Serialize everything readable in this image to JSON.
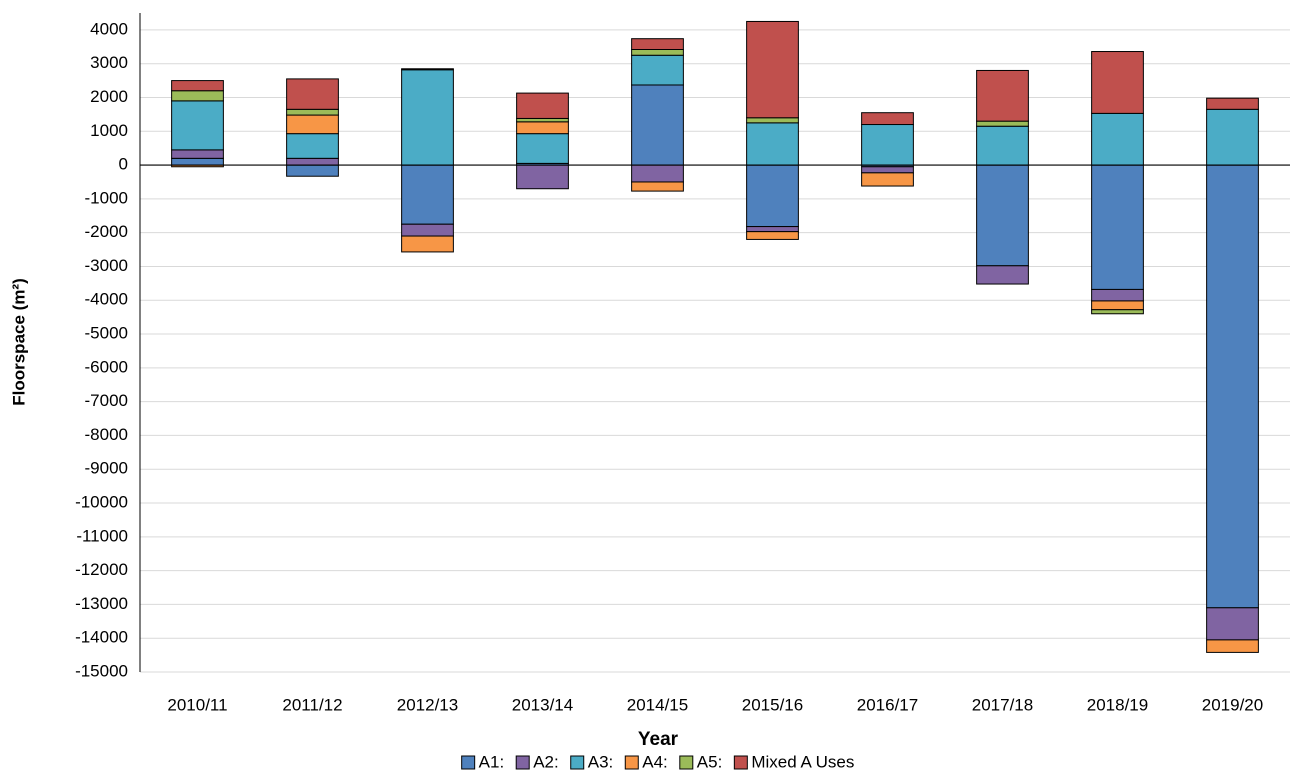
{
  "chart_data": {
    "type": "stacked_bar",
    "x_label": "Year",
    "y_label": "Floorspace (m²)",
    "categories": [
      "2010/11",
      "2011/12",
      "2012/13",
      "2013/14",
      "2014/15",
      "2015/16",
      "2016/17",
      "2017/18",
      "2018/19",
      "2019/20"
    ],
    "series": [
      {
        "name": "A1:",
        "color": "#4f81bd",
        "values": [
          200,
          -330,
          -1750,
          50,
          2370,
          -1820,
          -50,
          -2980,
          -3680,
          -13100
        ]
      },
      {
        "name": "A2:",
        "color": "#8064a2",
        "values": [
          250,
          200,
          -350,
          -700,
          -500,
          -150,
          -180,
          -540,
          -340,
          -950
        ]
      },
      {
        "name": "A3:",
        "color": "#4bacc6",
        "values": [
          1450,
          730,
          2820,
          880,
          880,
          1250,
          1200,
          1150,
          1530,
          1650
        ]
      },
      {
        "name": "A4:",
        "color": "#f79646",
        "values": [
          -50,
          550,
          -470,
          350,
          -270,
          -230,
          -390,
          0,
          -260,
          -370
        ]
      },
      {
        "name": "A5:",
        "color": "#9bbb59",
        "values": [
          300,
          170,
          30,
          100,
          170,
          150,
          0,
          150,
          -120,
          0
        ]
      },
      {
        "name": "Mixed A Uses",
        "color": "#c0504d",
        "values": [
          300,
          900,
          0,
          750,
          320,
          2850,
          350,
          1500,
          1830,
          330
        ]
      }
    ],
    "ylim": [
      -15000,
      4500
    ],
    "yticks": [
      -15000,
      -14000,
      -13000,
      -12000,
      -11000,
      -10000,
      -9000,
      -8000,
      -7000,
      -6000,
      -5000,
      -4000,
      -3000,
      -2000,
      -1000,
      0,
      1000,
      2000,
      3000,
      4000
    ],
    "grid": true
  }
}
